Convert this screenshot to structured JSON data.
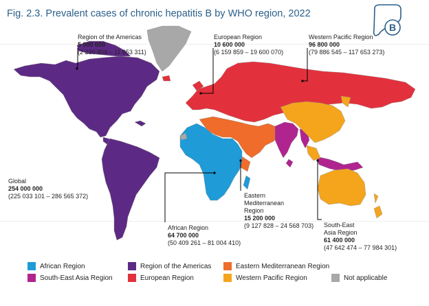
{
  "title": "Fig. 2.3. Prevalent cases of chronic hepatitis B by WHO region, 2022",
  "logo": {
    "icon": "liver-b-icon",
    "letter": "B",
    "color": "#2b5f8a"
  },
  "colors": {
    "african": "#1f9bd7",
    "americas": "#5c2a84",
    "eastern_med": "#ef6c2b",
    "south_east_asia": "#b0248f",
    "european": "#e2313d",
    "western_pacific": "#f4a51c",
    "not_applicable": "#a8a8a8"
  },
  "annotations": {
    "americas": {
      "name": "Region of the Americas",
      "value": "5 000 000",
      "range": "(2 230 804 – 11 653 311)"
    },
    "european": {
      "name": "European Region",
      "value": "10 600 000",
      "range": "(6 159 859 – 19 600 070)"
    },
    "western_pacific": {
      "name": "Western Pacific Region",
      "value": "96 800 000",
      "range": "(79 886 545 – 117 653 273)"
    },
    "global": {
      "name": "Global",
      "value": "254 000 000",
      "range": "(225 033 101 – 286 565 372)"
    },
    "eastern_med": {
      "name1": "Eastern",
      "name2": "Mediterranean",
      "name3": "Region",
      "value": "15 200 000",
      "range": "(9 127 828 – 24 568 703)"
    },
    "african": {
      "name": "African Region",
      "value": "64 700 000",
      "range": "(50 409 261 – 81 004 410)"
    },
    "south_east_asia": {
      "name1": "South-East",
      "name2": "Asia Region",
      "value": "61 400 000",
      "range": "(47 642 474 – 77 984 301)"
    }
  },
  "legend": [
    {
      "label": "African Region",
      "color": "#1f9bd7"
    },
    {
      "label": "Region of the Americas",
      "color": "#5c2a84"
    },
    {
      "label": "Eastern Mediterranean Region",
      "color": "#ef6c2b"
    },
    {
      "label": "South-East Asia Region",
      "color": "#b0248f"
    },
    {
      "label": "European Region",
      "color": "#e2313d"
    },
    {
      "label": "Western Pacific Region",
      "color": "#f4a51c"
    },
    {
      "label": "Not applicable",
      "color": "#a8a8a8"
    }
  ]
}
